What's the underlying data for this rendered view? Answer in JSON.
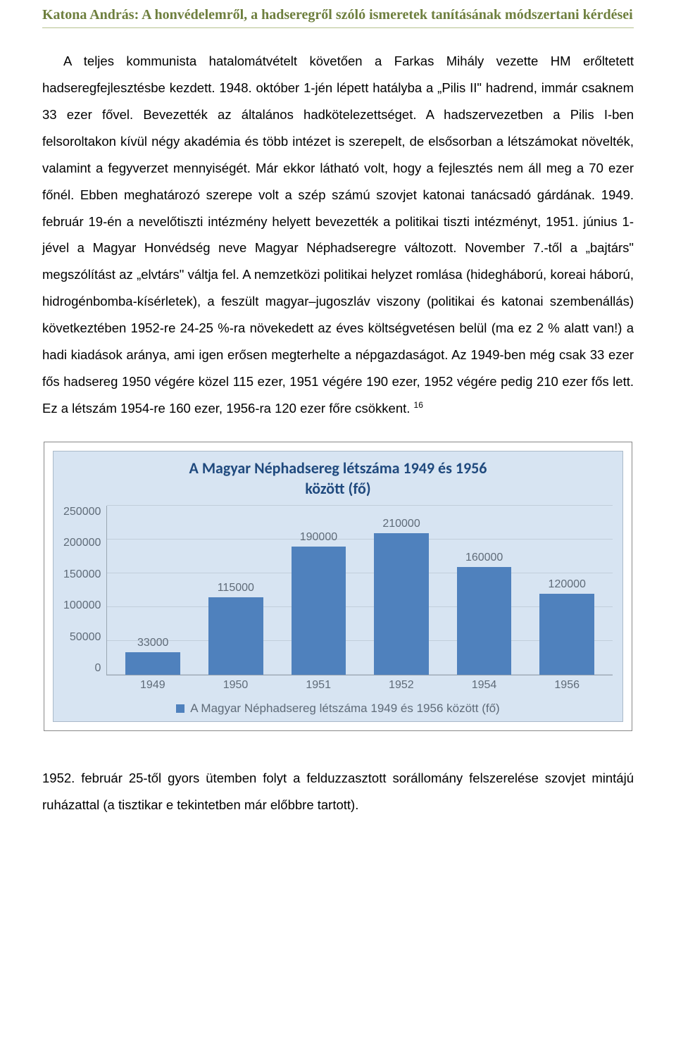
{
  "header": {
    "title": "Katona András: A honvédelemről, a hadseregről szóló ismeretek tanításának módszertani kérdései",
    "title_color": "#6e7f3e",
    "rule_color": "#b6c28f"
  },
  "paragraph1": "A teljes kommunista hatalomátvételt követően a Farkas Mihály vezette HM erőltetett hadseregfejlesztésbe kezdett. 1948. október 1-jén lépett hatályba a „Pilis II\" hadrend, immár csaknem 33 ezer fővel. Bevezették az általános hadkötelezettséget. A hadszervezetben a Pilis I-ben felsoroltakon kívül négy akadémia és több intézet is szerepelt, de elsősorban a létszámokat növelték, valamint a fegyverzet mennyiségét. Már ekkor látható volt, hogy a fejlesztés nem áll meg a 70 ezer főnél. Ebben meghatározó szerepe volt a szép számú szovjet katonai tanácsadó gárdának. 1949. február 19-én a nevelőtiszti intézmény helyett bevezették a politikai tiszti intézményt, 1951. június 1-jével a Magyar Honvédség neve Magyar Néphadseregre változott. November 7.-től a „bajtárs\" megszólítást az „elvtárs\" váltja fel. A nemzetközi politikai helyzet romlása (hidegháború, koreai háború, hidrogénbomba-kísérletek), a feszült magyar–jugoszláv viszony (politikai és katonai szembenállás) következtében 1952-re 24-25 %-ra növekedett az éves költségvetésen belül (ma ez 2 % alatt van!) a hadi kiadások aránya, ami igen erősen megterhelte a népgazdaságot. Az 1949-ben még csak 33 ezer fős hadsereg 1950 végére közel 115 ezer, 1951 végére 190 ezer, 1952 végére pedig 210 ezer fős lett. Ez a létszám 1954-re 160 ezer, 1956-ra 120 ezer főre csökkent.",
  "footnote_ref": "16",
  "chart": {
    "type": "bar",
    "title_line1": "A Magyar Néphadsereg létszáma 1949 és 1956",
    "title_line2": "között (fő)",
    "title_color": "#1f497d",
    "title_fontsize": 22,
    "plot_bg": "#d7e4f2",
    "grid_color": "#c1cedb",
    "axis_color": "#9aa6b2",
    "label_color": "#5f6b78",
    "label_fontsize": 16,
    "bar_color": "#4f81bd",
    "bar_width_ratio": 0.66,
    "ylim": [
      0,
      250000
    ],
    "ytick_step": 50000,
    "yticks": [
      "250000",
      "200000",
      "150000",
      "100000",
      "50000",
      "0"
    ],
    "categories": [
      "1949",
      "1950",
      "1951",
      "1952",
      "1954",
      "1956"
    ],
    "values": [
      33000,
      115000,
      190000,
      210000,
      160000,
      120000
    ],
    "value_labels": [
      "33000",
      "115000",
      "190000",
      "210000",
      "160000",
      "120000"
    ],
    "legend_label": "A Magyar Néphadsereg létszáma 1949 és 1956 között (fő)"
  },
  "paragraph2": "1952. február 25-től gyors ütemben folyt a felduzzasztott sorállomány felszerelése szovjet mintájú ruházattal (a tisztikar e tekintetben már előbbre tartott)."
}
